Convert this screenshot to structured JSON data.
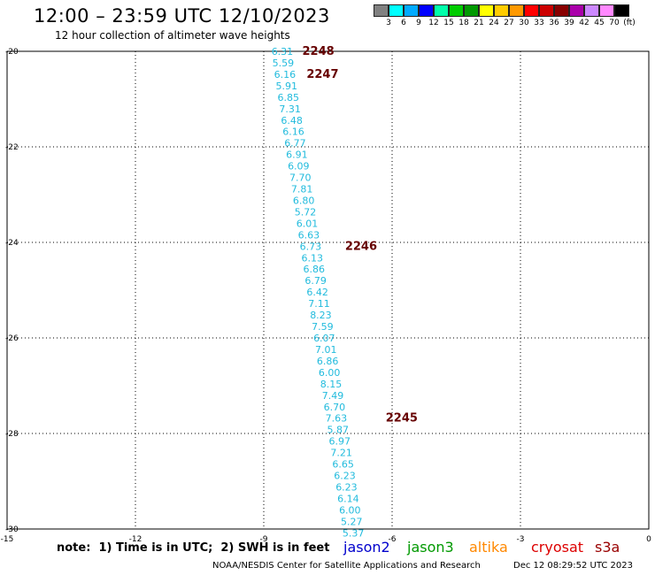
{
  "header": {
    "title": "12:00 – 23:59 UTC 12/10/2023",
    "subtitle": "12 hour collection of altimeter wave heights"
  },
  "legend": {
    "colors": [
      "#808080",
      "#00ffff",
      "#00aaff",
      "#0000ff",
      "#00ffaa",
      "#00cc00",
      "#009900",
      "#ffff00",
      "#ffcc00",
      "#ff9900",
      "#ff0000",
      "#cc0000",
      "#880000",
      "#aa00aa",
      "#cc88ff",
      "#ff88ff",
      "#000000"
    ],
    "labels": [
      "3",
      "6",
      "9",
      "12",
      "15",
      "18",
      "21",
      "24",
      "27",
      "30",
      "33",
      "36",
      "39",
      "42",
      "45",
      "70",
      "(ft)"
    ]
  },
  "chart_data": {
    "type": "scatter",
    "x_ticks": [
      "-15",
      "-12",
      "-9",
      "-6",
      "-3",
      "0"
    ],
    "y_ticks": [
      "-20",
      "-22",
      "-24",
      "-26",
      "-28",
      "-30"
    ],
    "xlim": [
      -15,
      0
    ],
    "ylim": [
      -30,
      -20
    ],
    "grid": true,
    "track_color": "#22bbdd",
    "pass_color": "#660000",
    "points": [
      {
        "lon": -8.82,
        "lat": -20.0,
        "swh": "6.31"
      },
      {
        "lon": -8.8,
        "lat": -20.24,
        "swh": "5.59"
      },
      {
        "lon": -8.76,
        "lat": -20.48,
        "swh": "6.16"
      },
      {
        "lon": -8.72,
        "lat": -20.72,
        "swh": "5.91"
      },
      {
        "lon": -8.68,
        "lat": -20.96,
        "swh": "6.85"
      },
      {
        "lon": -8.64,
        "lat": -21.2,
        "swh": "7.31"
      },
      {
        "lon": -8.6,
        "lat": -21.44,
        "swh": "6.48"
      },
      {
        "lon": -8.56,
        "lat": -21.68,
        "swh": "6.16"
      },
      {
        "lon": -8.52,
        "lat": -21.92,
        "swh": "6.77"
      },
      {
        "lon": -8.48,
        "lat": -22.16,
        "swh": "6.91"
      },
      {
        "lon": -8.44,
        "lat": -22.4,
        "swh": "6.09"
      },
      {
        "lon": -8.4,
        "lat": -22.64,
        "swh": "7.70"
      },
      {
        "lon": -8.36,
        "lat": -22.88,
        "swh": "7.81"
      },
      {
        "lon": -8.32,
        "lat": -23.12,
        "swh": "6.80"
      },
      {
        "lon": -8.28,
        "lat": -23.36,
        "swh": "5.72"
      },
      {
        "lon": -8.24,
        "lat": -23.6,
        "swh": "6.01"
      },
      {
        "lon": -8.2,
        "lat": -23.84,
        "swh": "6.63"
      },
      {
        "lon": -8.16,
        "lat": -24.08,
        "swh": "6.73"
      },
      {
        "lon": -8.12,
        "lat": -24.32,
        "swh": "6.13"
      },
      {
        "lon": -8.08,
        "lat": -24.56,
        "swh": "6.86"
      },
      {
        "lon": -8.04,
        "lat": -24.8,
        "swh": "6.79"
      },
      {
        "lon": -8.0,
        "lat": -25.04,
        "swh": "6.42"
      },
      {
        "lon": -7.96,
        "lat": -25.28,
        "swh": "7.11"
      },
      {
        "lon": -7.92,
        "lat": -25.52,
        "swh": "8.23"
      },
      {
        "lon": -7.88,
        "lat": -25.76,
        "swh": "7.59"
      },
      {
        "lon": -7.84,
        "lat": -26.0,
        "swh": "6.07"
      },
      {
        "lon": -7.8,
        "lat": -26.24,
        "swh": "7.01"
      },
      {
        "lon": -7.76,
        "lat": -26.48,
        "swh": "6.86"
      },
      {
        "lon": -7.72,
        "lat": -26.72,
        "swh": "6.00"
      },
      {
        "lon": -7.68,
        "lat": -26.96,
        "swh": "8.15"
      },
      {
        "lon": -7.64,
        "lat": -27.2,
        "swh": "7.49"
      },
      {
        "lon": -7.6,
        "lat": -27.44,
        "swh": "6.70"
      },
      {
        "lon": -7.56,
        "lat": -27.68,
        "swh": "7.63"
      },
      {
        "lon": -7.52,
        "lat": -27.92,
        "swh": "5.87"
      },
      {
        "lon": -7.48,
        "lat": -28.16,
        "swh": "6.97"
      },
      {
        "lon": -7.44,
        "lat": -28.4,
        "swh": "7.21"
      },
      {
        "lon": -7.4,
        "lat": -28.64,
        "swh": "6.65"
      },
      {
        "lon": -7.36,
        "lat": -28.88,
        "swh": "6.23"
      },
      {
        "lon": -7.32,
        "lat": -29.12,
        "swh": "6.23"
      },
      {
        "lon": -7.28,
        "lat": -29.36,
        "swh": "6.14"
      },
      {
        "lon": -7.24,
        "lat": -29.6,
        "swh": "6.00"
      },
      {
        "lon": -7.2,
        "lat": -29.84,
        "swh": "5.27"
      },
      {
        "lon": -7.16,
        "lat": -30.08,
        "swh": "5.37"
      }
    ],
    "pass_labels": [
      {
        "text": "2248",
        "lon": -8.1,
        "lat": -20.0
      },
      {
        "text": "2247",
        "lon": -8.0,
        "lat": -20.48
      },
      {
        "text": "2246",
        "lon": -7.1,
        "lat": -24.08
      },
      {
        "text": "2245",
        "lon": -6.15,
        "lat": -27.68
      }
    ]
  },
  "footer": {
    "note": "note:  1) Time is in UTC;  2) SWH is in feet",
    "satellites": [
      {
        "name": "jason2",
        "color": "#0000cc"
      },
      {
        "name": "jason3",
        "color": "#009900"
      },
      {
        "name": "altika",
        "color": "#ff8800"
      },
      {
        "name": "cryosat",
        "color": "#dd0000"
      },
      {
        "name": "s3a",
        "color": "#990000"
      }
    ],
    "credit": "NOAA/NESDIS Center for Satellite Applications and Research",
    "timestamp": "Dec 12 08:29:52 UTC 2023"
  }
}
